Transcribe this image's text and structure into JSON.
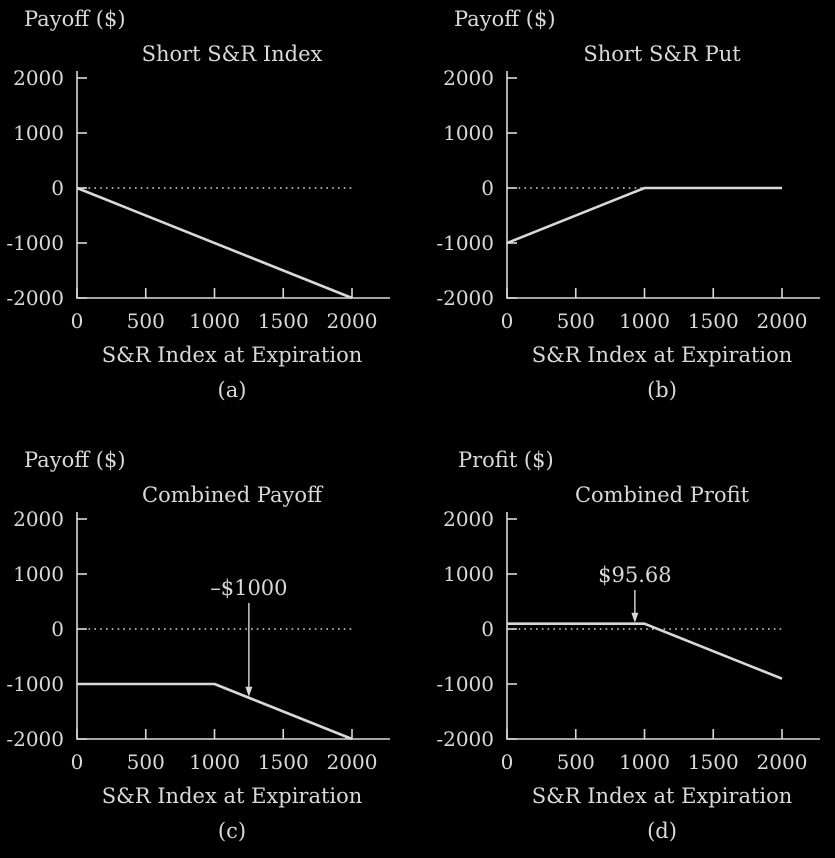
{
  "chart_data": [
    {
      "type": "line",
      "ylabel": "Payoff ($)",
      "title": "Short S&R Index",
      "xlabel": "S&R Index at Expiration",
      "panel_label": "(a)",
      "xlim": [
        0,
        2000
      ],
      "ylim": [
        -2000,
        2000
      ],
      "x_ticks": [
        "0",
        "500",
        "1000",
        "1500",
        "2000"
      ],
      "y_ticks": [
        "2000",
        "1000",
        "0",
        "-1000",
        "-2000"
      ],
      "series": [
        {
          "x": [
            0,
            2000
          ],
          "y": [
            0,
            -2000
          ]
        }
      ],
      "annotation": null
    },
    {
      "type": "line",
      "ylabel": "Payoff ($)",
      "title": "Short S&R Put",
      "xlabel": "S&R Index at Expiration",
      "panel_label": "(b)",
      "xlim": [
        0,
        2000
      ],
      "ylim": [
        -2000,
        2000
      ],
      "x_ticks": [
        "0",
        "500",
        "1000",
        "1500",
        "2000"
      ],
      "y_ticks": [
        "2000",
        "1000",
        "0",
        "-1000",
        "-2000"
      ],
      "series": [
        {
          "x": [
            0,
            1000,
            2000
          ],
          "y": [
            -1000,
            0,
            0
          ]
        }
      ],
      "annotation": null
    },
    {
      "type": "line",
      "ylabel": "Payoff ($)",
      "title": "Combined Payoff",
      "xlabel": "S&R Index at Expiration",
      "panel_label": "(c)",
      "xlim": [
        0,
        2000
      ],
      "ylim": [
        -2000,
        2000
      ],
      "x_ticks": [
        "0",
        "500",
        "1000",
        "1500",
        "2000"
      ],
      "y_ticks": [
        "2000",
        "1000",
        "0",
        "-1000",
        "-2000"
      ],
      "series": [
        {
          "x": [
            0,
            1000,
            2000
          ],
          "y": [
            -1000,
            -1000,
            -2000
          ]
        }
      ],
      "annotation": {
        "text": "–$1000",
        "x": 1250,
        "y": -1250
      }
    },
    {
      "type": "line",
      "ylabel": "Profit ($)",
      "title": "Combined Profit",
      "xlabel": "S&R Index at Expiration",
      "panel_label": "(d)",
      "xlim": [
        0,
        2000
      ],
      "ylim": [
        -2000,
        2000
      ],
      "x_ticks": [
        "0",
        "500",
        "1000",
        "1500",
        "2000"
      ],
      "y_ticks": [
        "2000",
        "1000",
        "0",
        "-1000",
        "-2000"
      ],
      "series": [
        {
          "x": [
            0,
            1000,
            2000
          ],
          "y": [
            95.68,
            95.68,
            -904.32
          ]
        }
      ],
      "annotation": {
        "text": "$95.68",
        "x": 930,
        "y": 95.68
      }
    }
  ]
}
